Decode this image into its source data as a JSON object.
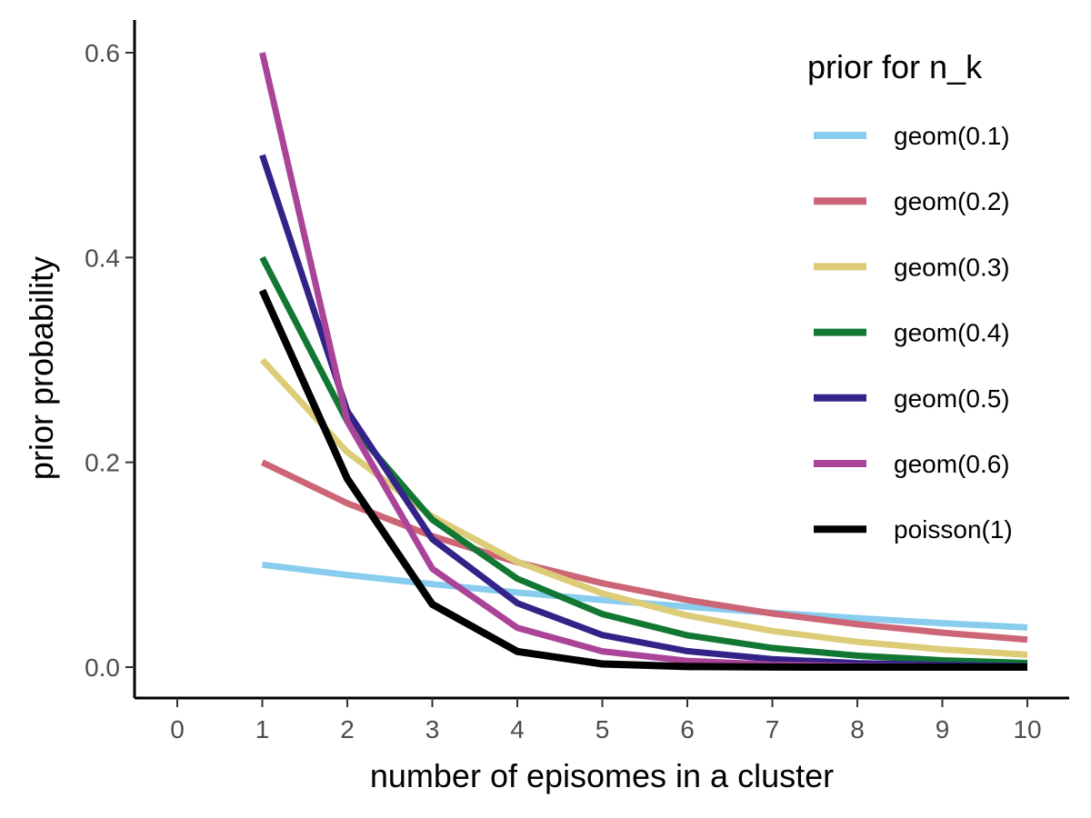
{
  "chart_data": {
    "type": "line",
    "xlabel": "number of episomes in a cluster",
    "ylabel": "prior probability",
    "xlim": [
      0,
      10
    ],
    "ylim": [
      0,
      0.6
    ],
    "x_ticks": [
      "0",
      "1",
      "2",
      "3",
      "4",
      "5",
      "6",
      "7",
      "8",
      "9",
      "10"
    ],
    "y_ticks": [
      "0.0",
      "0.2",
      "0.4",
      "0.6"
    ],
    "grid": false,
    "legend": {
      "title": "prior for n_k",
      "position": "top-right"
    },
    "x": [
      1,
      2,
      3,
      4,
      5,
      6,
      7,
      8,
      9,
      10
    ],
    "series": [
      {
        "name": "geom(0.1)",
        "color": "#88CCEE",
        "values": [
          0.1,
          0.09,
          0.081,
          0.0729,
          0.0656,
          0.059,
          0.0531,
          0.0478,
          0.043,
          0.0387
        ]
      },
      {
        "name": "geom(0.2)",
        "color": "#CC6677",
        "values": [
          0.2,
          0.16,
          0.128,
          0.1024,
          0.0819,
          0.0655,
          0.0524,
          0.0419,
          0.0336,
          0.0268
        ]
      },
      {
        "name": "geom(0.3)",
        "color": "#DDCC77",
        "values": [
          0.3,
          0.21,
          0.147,
          0.1029,
          0.072,
          0.0504,
          0.0353,
          0.0247,
          0.0173,
          0.0121
        ]
      },
      {
        "name": "geom(0.4)",
        "color": "#117733",
        "values": [
          0.4,
          0.24,
          0.144,
          0.0864,
          0.0518,
          0.0311,
          0.0187,
          0.0112,
          0.0067,
          0.004
        ]
      },
      {
        "name": "geom(0.5)",
        "color": "#332288",
        "values": [
          0.5,
          0.25,
          0.125,
          0.0625,
          0.0313,
          0.0156,
          0.0078,
          0.0039,
          0.002,
          0.001
        ]
      },
      {
        "name": "geom(0.6)",
        "color": "#AA4499",
        "values": [
          0.6,
          0.24,
          0.096,
          0.0384,
          0.0154,
          0.0061,
          0.0025,
          0.001,
          0.0004,
          0.0002
        ]
      },
      {
        "name": "poisson(1)",
        "color": "#000000",
        "values": [
          0.3679,
          0.1839,
          0.0613,
          0.0153,
          0.0031,
          0.0005,
          0.0001,
          0.0,
          0.0,
          0.0
        ]
      }
    ]
  }
}
